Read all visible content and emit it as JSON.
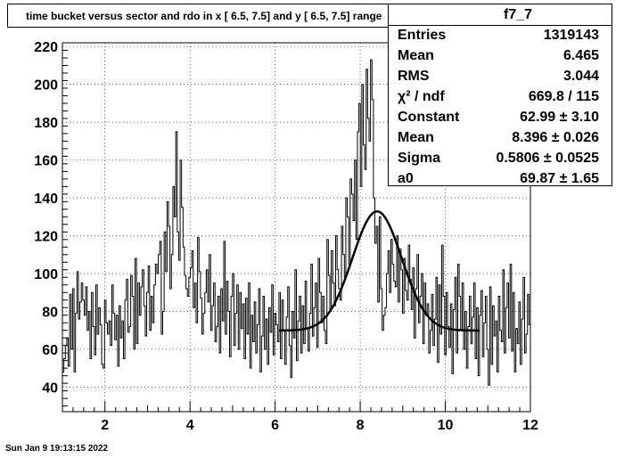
{
  "title": "time bucket versus sector and rdo in x [  6.5,  7.5] and y [  6.5,  7.5] range",
  "stats": {
    "name": "f7_7",
    "rows": [
      {
        "label": "Entries",
        "value": "1319143"
      },
      {
        "label": "Mean",
        "value": "6.465"
      },
      {
        "label": "RMS",
        "value": "3.044"
      },
      {
        "label": "χ² / ndf",
        "value": "669.8 / 115"
      },
      {
        "label": "Constant",
        "value": "62.99 ± 3.10"
      },
      {
        "label": "Mean",
        "value": "8.396 ± 0.026"
      },
      {
        "label": "Sigma",
        "value": "0.5806 ± 0.0525"
      },
      {
        "label": "a0",
        "value": "69.87 ± 1.65"
      }
    ]
  },
  "timestamp": "Sun Jan  9 19:13:15 2022",
  "colors": {
    "line": "#000000",
    "grid": "#000000",
    "background": "#ffffff"
  },
  "chart_data": {
    "type": "histogram",
    "xlim": [
      1,
      12
    ],
    "ylim": [
      27,
      222
    ],
    "xticks": [
      2,
      4,
      6,
      8,
      10,
      12
    ],
    "yticks": [
      40,
      60,
      80,
      100,
      120,
      140,
      160,
      180,
      200,
      220
    ],
    "grid": true,
    "bins": {
      "x_start": 1,
      "x_end": 12,
      "values": [
        48,
        55,
        62,
        66,
        51,
        89,
        60,
        92,
        48,
        79,
        101,
        76,
        85,
        95,
        86,
        78,
        93,
        70,
        80,
        55,
        90,
        72,
        57,
        94,
        68,
        82,
        73,
        52,
        50,
        86,
        74,
        68,
        75,
        62,
        94,
        79,
        65,
        78,
        51,
        83,
        66,
        75,
        55,
        86,
        97,
        69,
        72,
        99,
        88,
        60,
        108,
        63,
        95,
        78,
        93,
        102,
        83,
        67,
        90,
        104,
        70,
        88,
        74,
        94,
        105,
        100,
        110,
        117,
        68,
        80,
        122,
        101,
        138,
        125,
        92,
        110,
        146,
        130,
        175,
        122,
        107,
        160,
        135,
        114,
        99,
        92,
        88,
        98,
        103,
        112,
        82,
        95,
        74,
        119,
        101,
        87,
        68,
        79,
        90,
        102,
        85,
        110,
        70,
        83,
        95,
        64,
        72,
        88,
        58,
        92,
        75,
        117,
        68,
        96,
        80,
        56,
        88,
        100,
        62,
        79,
        94,
        60,
        90,
        71,
        84,
        55,
        87,
        68,
        95,
        50,
        78,
        64,
        85,
        58,
        73,
        92,
        48,
        67,
        88,
        60,
        76,
        52,
        82,
        69,
        94,
        57,
        79,
        73,
        64,
        90,
        55,
        86,
        70,
        52,
        77,
        93,
        62,
        45,
        80,
        66,
        102,
        54,
        75,
        88,
        58,
        83,
        63,
        96,
        71,
        59,
        79,
        105,
        67,
        82,
        95,
        61,
        108,
        90,
        74,
        88,
        70,
        63,
        118,
        99,
        80,
        112,
        95,
        83,
        120,
        102,
        92,
        86,
        125,
        110,
        98,
        140,
        130,
        105,
        150,
        142,
        128,
        160,
        118,
        175,
        190,
        146,
        200,
        168,
        155,
        208,
        182,
        170,
        213,
        192,
        140,
        116,
        125,
        85,
        130,
        92,
        70,
        78,
        82,
        100,
        112,
        90,
        118,
        105,
        96,
        93,
        120,
        85,
        113,
        102,
        79,
        108,
        91,
        86,
        115,
        97,
        81,
        103,
        66,
        92,
        110,
        74,
        88,
        100,
        63,
        95,
        78,
        84,
        58,
        70,
        89,
        62,
        76,
        98,
        53,
        94,
        68,
        115,
        88,
        57,
        90,
        72,
        61,
        84,
        47,
        81,
        98,
        58,
        105,
        88,
        70,
        95,
        60,
        80,
        50,
        72,
        88,
        63,
        77,
        95,
        55,
        82,
        46,
        78,
        91,
        56,
        74,
        88,
        60,
        41,
        93,
        52,
        83,
        67,
        75,
        48,
        88,
        70,
        64,
        102,
        58,
        82,
        95,
        66,
        105,
        59,
        90,
        48,
        71,
        63,
        85,
        52,
        76,
        98,
        58,
        68,
        89,
        73
      ]
    },
    "fit": {
      "type": "gaus + a0",
      "constant": 62.99,
      "mean": 8.396,
      "sigma": 0.5806,
      "a0": 69.87,
      "range": [
        6.1,
        10.8
      ]
    }
  }
}
